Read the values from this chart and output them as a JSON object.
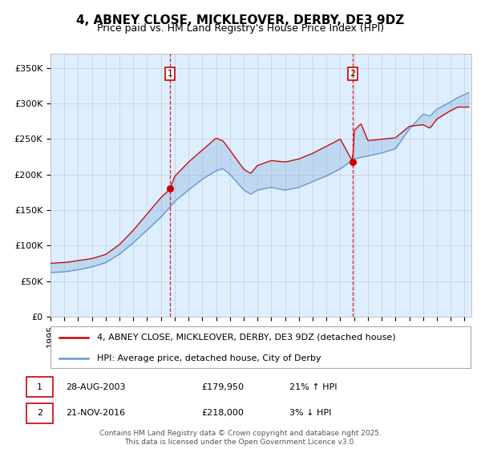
{
  "title": "4, ABNEY CLOSE, MICKLEOVER, DERBY, DE3 9DZ",
  "subtitle": "Price paid vs. HM Land Registry's House Price Index (HPI)",
  "ylim": [
    0,
    370000
  ],
  "xlim_start": 1995.0,
  "xlim_end": 2025.5,
  "yticks": [
    0,
    50000,
    100000,
    150000,
    200000,
    250000,
    300000,
    350000
  ],
  "ytick_labels": [
    "£0",
    "£50K",
    "£100K",
    "£150K",
    "£200K",
    "£250K",
    "£300K",
    "£350K"
  ],
  "red_line_color": "#cc0000",
  "blue_line_color": "#6699cc",
  "bg_color": "#ddeeff",
  "grid_color": "#cccccc",
  "marker1_x": 2003.65,
  "marker1_y": 179950,
  "marker2_x": 2016.9,
  "marker2_y": 218000,
  "vline1_x": 2003.65,
  "vline2_x": 2016.9,
  "legend_label_red": "4, ABNEY CLOSE, MICKLEOVER, DERBY, DE3 9DZ (detached house)",
  "legend_label_blue": "HPI: Average price, detached house, City of Derby",
  "table_row1": [
    "1",
    "28-AUG-2003",
    "£179,950",
    "21% ↑ HPI"
  ],
  "table_row2": [
    "2",
    "21-NOV-2016",
    "£218,000",
    "3% ↓ HPI"
  ],
  "footer": "Contains HM Land Registry data © Crown copyright and database right 2025.\nThis data is licensed under the Open Government Licence v3.0.",
  "title_fontsize": 11,
  "subtitle_fontsize": 9,
  "tick_fontsize": 8,
  "legend_fontsize": 8,
  "footer_fontsize": 6.5,
  "red_anchors_x": [
    1995,
    1996,
    1997,
    1998,
    1999,
    2000,
    2001,
    2002,
    2003,
    2003.65,
    2004,
    2005,
    2006,
    2007,
    2007.5,
    2008,
    2009,
    2009.5,
    2010,
    2011,
    2012,
    2013,
    2014,
    2015,
    2016,
    2016.9,
    2017,
    2017.5,
    2018,
    2019,
    2020,
    2021,
    2022,
    2022.5,
    2023,
    2024,
    2024.5,
    2025.3
  ],
  "red_anchors_y": [
    75000,
    76000,
    79000,
    82000,
    88000,
    102000,
    122000,
    145000,
    168000,
    179950,
    198000,
    218000,
    235000,
    252000,
    248000,
    235000,
    208000,
    202000,
    213000,
    220000,
    218000,
    222000,
    230000,
    240000,
    250000,
    218000,
    262000,
    272000,
    248000,
    250000,
    252000,
    268000,
    270000,
    265000,
    278000,
    290000,
    295000,
    295000
  ],
  "blue_anchors_x": [
    1995,
    1996,
    1997,
    1998,
    1999,
    2000,
    2001,
    2002,
    2003,
    2004,
    2005,
    2006,
    2007,
    2007.5,
    2008,
    2009,
    2009.5,
    2010,
    2011,
    2012,
    2013,
    2014,
    2015,
    2016,
    2017,
    2018,
    2019,
    2020,
    2021,
    2022,
    2022.5,
    2023,
    2024,
    2024.5,
    2025.3
  ],
  "blue_anchors_y": [
    62000,
    63000,
    66000,
    70000,
    76000,
    88000,
    104000,
    122000,
    140000,
    162000,
    178000,
    193000,
    205000,
    208000,
    200000,
    178000,
    172000,
    178000,
    182000,
    178000,
    182000,
    190000,
    198000,
    208000,
    222000,
    226000,
    230000,
    236000,
    264000,
    285000,
    282000,
    292000,
    302000,
    308000,
    315000
  ]
}
